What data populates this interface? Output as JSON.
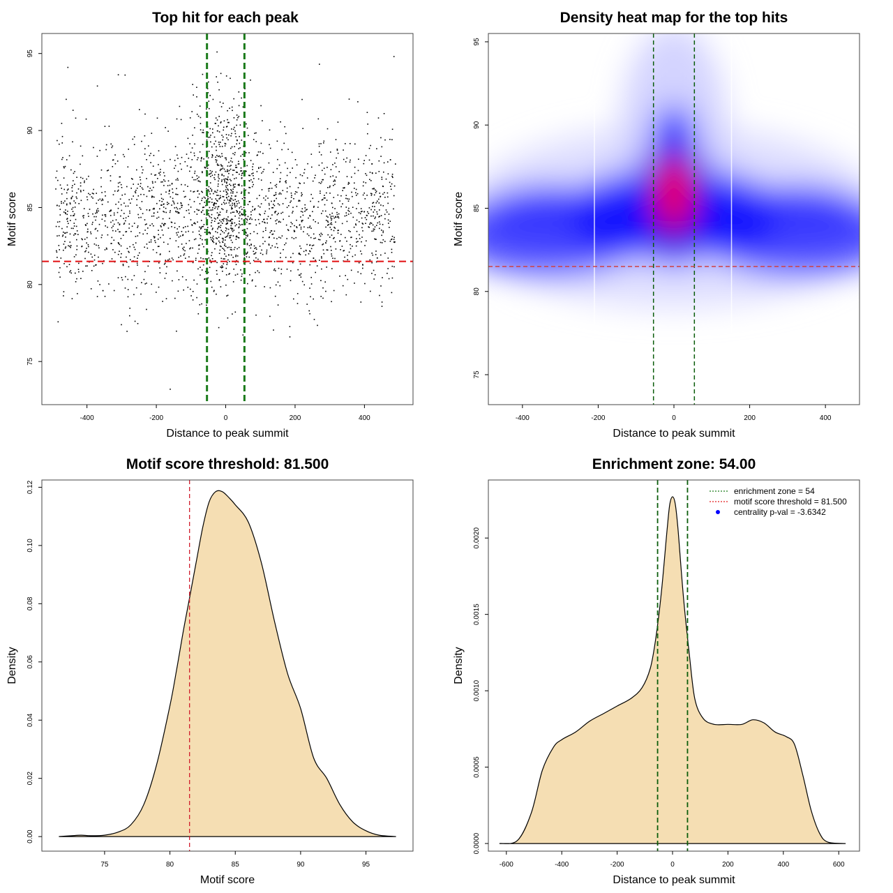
{
  "colors": {
    "points": "#000000",
    "threshold_line": "#e31a1c",
    "zone_line": "#1a7a1a",
    "heat_low": "#ffffff",
    "heat_mid": "#0000ff",
    "heat_high": "#ff0000",
    "density_fill": "#f5deb3",
    "legend_point": "#0000ff"
  },
  "chart_data": [
    {
      "id": "scatter",
      "type": "scatter",
      "title": "Top hit for each peak",
      "xlabel": "Distance to peak summit",
      "ylabel": "Motif score",
      "xlim": [
        -530,
        540
      ],
      "ylim": [
        72.2,
        96.3
      ],
      "xticks": [
        -400,
        -200,
        0,
        200,
        400
      ],
      "yticks": [
        75,
        80,
        85,
        90,
        95
      ],
      "n_points": 2400,
      "threshold": 81.5,
      "zone": [
        -54,
        54
      ],
      "sample_points": [
        [
          -160,
          73.2
        ],
        [
          -25,
          95.1
        ],
        [
          -455,
          94.1
        ],
        [
          485,
          94.8
        ],
        [
          -290,
          93.6
        ],
        [
          270,
          94.3
        ],
        [
          -20,
          77.2
        ],
        [
          185,
          76.6
        ]
      ]
    },
    {
      "id": "heatmap",
      "type": "heatmap",
      "title": "Density heat map for the top hits",
      "xlabel": "Distance to peak summit",
      "ylabel": "Motif score",
      "xlim": [
        -490,
        490
      ],
      "ylim": [
        73.2,
        95.5
      ],
      "xticks": [
        -400,
        -200,
        0,
        200,
        400
      ],
      "yticks": [
        75,
        80,
        85,
        90,
        95
      ],
      "threshold": 81.5,
      "zone": [
        -54,
        54
      ]
    },
    {
      "id": "score-density",
      "type": "area",
      "title": "Motif score threshold: 81.500",
      "xlabel": "Motif score",
      "ylabel": "Density",
      "xlim": [
        70.2,
        98.6
      ],
      "ylim": [
        -0.005,
        0.1225
      ],
      "xticks": [
        75,
        80,
        85,
        90,
        95
      ],
      "yticks": [
        0.0,
        0.02,
        0.04,
        0.06,
        0.08,
        0.1,
        0.12
      ],
      "ytick_labels": [
        "0.00",
        "0.02",
        "0.04",
        "0.06",
        "0.08",
        "0.10",
        "0.12"
      ],
      "threshold": 81.5,
      "x": [
        71.5,
        72.5,
        73.2,
        74.0,
        75.0,
        76.0,
        77.0,
        78.0,
        79.0,
        80.0,
        80.5,
        81.0,
        81.5,
        82.0,
        82.5,
        83.0,
        83.5,
        84.0,
        84.5,
        85.0,
        86.0,
        87.0,
        88.0,
        89.0,
        90.0,
        91.0,
        92.0,
        93.0,
        94.0,
        95.0,
        96.0,
        97.3
      ],
      "y": [
        0.0,
        0.0003,
        0.0005,
        0.0003,
        0.0005,
        0.0015,
        0.004,
        0.011,
        0.025,
        0.045,
        0.057,
        0.07,
        0.082,
        0.094,
        0.106,
        0.115,
        0.1185,
        0.1185,
        0.1165,
        0.114,
        0.108,
        0.094,
        0.074,
        0.056,
        0.044,
        0.027,
        0.02,
        0.011,
        0.005,
        0.002,
        0.0005,
        0.0
      ]
    },
    {
      "id": "distance-density",
      "type": "area",
      "title": "Enrichment zone: 54.00",
      "xlabel": "Distance to peak summit",
      "ylabel": "Density",
      "xlim": [
        -665,
        675
      ],
      "ylim": [
        -5e-05,
        0.00238
      ],
      "xticks": [
        -600,
        -400,
        -200,
        0,
        200,
        400,
        600
      ],
      "yticks": [
        0.0,
        0.0005,
        0.001,
        0.0015,
        0.002
      ],
      "ytick_labels": [
        "0.0000",
        "0.0005",
        "0.0010",
        "0.0015",
        "0.0020"
      ],
      "zone": [
        -54,
        54
      ],
      "x": [
        -625,
        -560,
        -510,
        -470,
        -430,
        -400,
        -350,
        -300,
        -250,
        -200,
        -150,
        -110,
        -80,
        -60,
        -40,
        -20,
        -10,
        0,
        10,
        20,
        40,
        60,
        80,
        110,
        150,
        200,
        250,
        290,
        330,
        370,
        410,
        440,
        470,
        500,
        530,
        560,
        625
      ],
      "y": [
        0.0,
        2e-05,
        0.0002,
        0.00048,
        0.00063,
        0.00068,
        0.00073,
        0.0008,
        0.00085,
        0.0009,
        0.00095,
        0.00102,
        0.00115,
        0.00135,
        0.00165,
        0.00205,
        0.00222,
        0.00227,
        0.00222,
        0.00205,
        0.0016,
        0.00125,
        0.00095,
        0.00082,
        0.00078,
        0.00078,
        0.00078,
        0.00081,
        0.00079,
        0.00073,
        0.0007,
        0.00065,
        0.00045,
        0.00022,
        7e-05,
        1e-05,
        0.0
      ],
      "legend": [
        {
          "label": "enrichment zone = 54",
          "style": "dotted-line",
          "color": "#1a7a1a"
        },
        {
          "label": "motif score threshold = 81.500",
          "style": "dotted-line",
          "color": "#e31a1c"
        },
        {
          "label": "centrality p-val = -3.6342",
          "style": "point",
          "color": "#0000ff"
        }
      ],
      "legend_position": "top-right"
    }
  ]
}
